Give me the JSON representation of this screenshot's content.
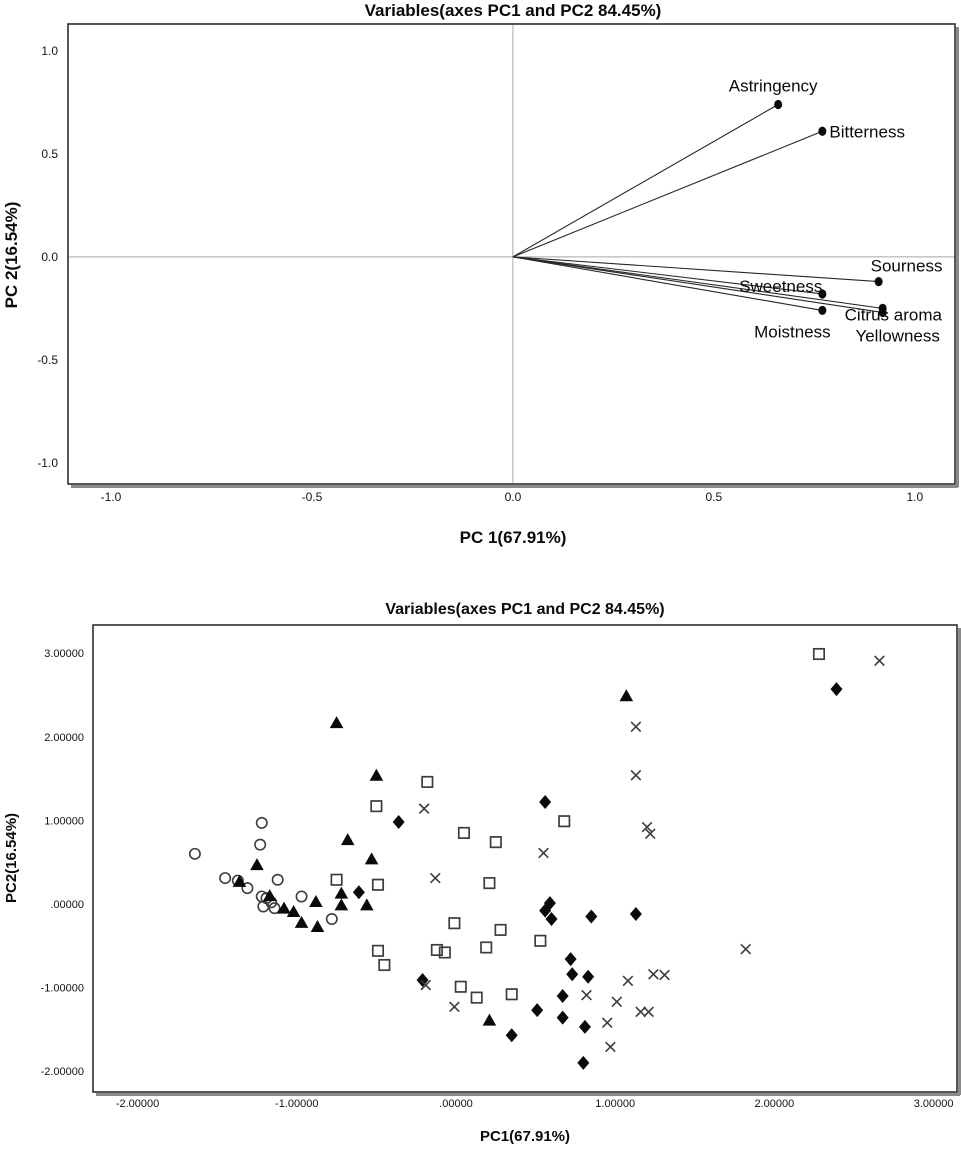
{
  "figure": {
    "background": "#ffffff",
    "frame_color": "#2e2e2e",
    "shadow_color": "#8a8a8a",
    "crosshair_color": "#a8a8a8",
    "marker_color": "#0a0a0a",
    "open_marker_stroke": "#3d3d3d"
  },
  "chart_data": [
    {
      "id": "loadings",
      "type": "scatter",
      "title": "Variables(axes PC1 and PC2 84.45%)",
      "xlabel": "PC 1(67.91%)",
      "ylabel": "PC 2(16.54%)",
      "xlim": [
        -1.107,
        1.1
      ],
      "ylim": [
        -1.103,
        1.131
      ],
      "xticks": [
        -1.0,
        -0.5,
        0.0,
        0.5,
        1.0
      ],
      "xtick_labels": [
        "-1.0",
        "-0.5",
        "0.0",
        "0.5",
        "1.0"
      ],
      "yticks": [
        1.0,
        0.5,
        0.0,
        -0.5,
        -1.0
      ],
      "ytick_labels": [
        "1.0",
        "0.5",
        "0.0",
        "-0.5",
        "-1.0"
      ],
      "grid": false,
      "crosshair": true,
      "legend": "none",
      "vectors": [
        {
          "label": "Astringency",
          "x": 0.66,
          "y": 0.74,
          "anchor": "middle",
          "dx": -5,
          "dy": -13
        },
        {
          "label": "Bitterness",
          "x": 0.77,
          "y": 0.61,
          "anchor": "start",
          "dx": 7,
          "dy": 6
        },
        {
          "label": "Sourness",
          "x": 0.91,
          "y": -0.12,
          "anchor": "start",
          "dx": -8,
          "dy": -10
        },
        {
          "label": "Sweetness",
          "x": 0.77,
          "y": -0.18,
          "anchor": "end",
          "dx": 0,
          "dy": -2
        },
        {
          "label": "Citrus aroma",
          "x": 0.92,
          "y": -0.25,
          "anchor": "start",
          "dx": -38,
          "dy": 12
        },
        {
          "label": "Moistness",
          "x": 0.77,
          "y": -0.26,
          "anchor": "middle",
          "dx": -30,
          "dy": 27
        },
        {
          "label": "Yellowness",
          "x": 0.92,
          "y": -0.27,
          "anchor": "middle",
          "dx": 15,
          "dy": 29
        }
      ]
    },
    {
      "id": "scores",
      "type": "scatter",
      "title": "Variables(axes PC1 and PC2 84.45%)",
      "xlabel": "PC1(67.91%)",
      "ylabel": "PC2(16.54%)",
      "xlim": [
        -2.28,
        3.147
      ],
      "ylim": [
        -2.249,
        3.337
      ],
      "xticks": [
        -2.0,
        -1.0,
        0.0,
        1.0,
        2.0,
        3.0
      ],
      "xtick_labels": [
        "-2.00000",
        "-1.00000",
        ".00000",
        "1.00000",
        "2.00000",
        "3.00000"
      ],
      "yticks": [
        3.0,
        2.0,
        1.0,
        0.0,
        -1.0,
        -2.0
      ],
      "ytick_labels": [
        "3.00000",
        "2.00000",
        "1.00000",
        ".00000",
        "-1.00000",
        "-2.00000"
      ],
      "grid": false,
      "crosshair": false,
      "legend": "none",
      "series": [
        {
          "name": "group-open-circle",
          "marker": "circle",
          "points": [
            [
              -1.64,
              0.6
            ],
            [
              -1.45,
              0.31
            ],
            [
              -1.37,
              0.28
            ],
            [
              -1.31,
              0.19
            ],
            [
              -1.22,
              0.97
            ],
            [
              -1.23,
              0.71
            ],
            [
              -1.12,
              0.29
            ],
            [
              -1.22,
              0.09
            ],
            [
              -1.19,
              0.07
            ],
            [
              -1.21,
              -0.03
            ],
            [
              -1.16,
              0.02
            ],
            [
              -1.14,
              -0.05
            ],
            [
              -0.97,
              0.09
            ],
            [
              -0.78,
              -0.18
            ]
          ]
        },
        {
          "name": "group-filled-triangle",
          "marker": "triangle-filled",
          "points": [
            [
              1.07,
              2.49
            ],
            [
              -0.75,
              2.17
            ],
            [
              -0.5,
              1.54
            ],
            [
              -0.68,
              0.77
            ],
            [
              -0.53,
              0.54
            ],
            [
              -1.25,
              0.47
            ],
            [
              -1.36,
              0.27
            ],
            [
              -1.17,
              0.1
            ],
            [
              -0.72,
              0.13
            ],
            [
              -0.88,
              0.03
            ],
            [
              -1.08,
              -0.05
            ],
            [
              -1.02,
              -0.09
            ],
            [
              -0.72,
              -0.01
            ],
            [
              -0.56,
              -0.01
            ],
            [
              -0.97,
              -0.22
            ],
            [
              -0.87,
              -0.27
            ],
            [
              0.21,
              -1.39
            ]
          ]
        },
        {
          "name": "group-open-square",
          "marker": "square",
          "points": [
            [
              2.28,
              2.99
            ],
            [
              -0.18,
              1.46
            ],
            [
              -0.5,
              1.17
            ],
            [
              0.68,
              0.99
            ],
            [
              0.05,
              0.85
            ],
            [
              0.25,
              0.74
            ],
            [
              -0.75,
              0.29
            ],
            [
              -0.49,
              0.23
            ],
            [
              0.21,
              0.25
            ],
            [
              -0.01,
              -0.23
            ],
            [
              0.28,
              -0.31
            ],
            [
              -0.12,
              -0.55
            ],
            [
              -0.07,
              -0.58
            ],
            [
              0.19,
              -0.52
            ],
            [
              0.53,
              -0.44
            ],
            [
              -0.49,
              -0.56
            ],
            [
              -0.45,
              -0.73
            ],
            [
              0.03,
              -0.99
            ],
            [
              0.13,
              -1.12
            ],
            [
              0.35,
              -1.08
            ]
          ]
        },
        {
          "name": "group-filled-diamond",
          "marker": "diamond-filled",
          "points": [
            [
              2.39,
              2.57
            ],
            [
              0.56,
              1.22
            ],
            [
              -0.36,
              0.98
            ],
            [
              -0.61,
              0.14
            ],
            [
              0.59,
              0.01
            ],
            [
              0.56,
              -0.08
            ],
            [
              0.6,
              -0.18
            ],
            [
              0.85,
              -0.15
            ],
            [
              1.13,
              -0.12
            ],
            [
              0.72,
              -0.66
            ],
            [
              0.73,
              -0.84
            ],
            [
              0.83,
              -0.87
            ],
            [
              -0.21,
              -0.91
            ],
            [
              0.67,
              -1.1
            ],
            [
              0.51,
              -1.27
            ],
            [
              0.67,
              -1.36
            ],
            [
              0.81,
              -1.47
            ],
            [
              0.35,
              -1.57
            ],
            [
              0.8,
              -1.9
            ]
          ]
        },
        {
          "name": "group-x-cross",
          "marker": "x",
          "points": [
            [
              2.66,
              2.91
            ],
            [
              1.13,
              2.12
            ],
            [
              1.13,
              1.54
            ],
            [
              -0.2,
              1.14
            ],
            [
              1.2,
              0.92
            ],
            [
              1.22,
              0.84
            ],
            [
              0.55,
              0.61
            ],
            [
              -0.13,
              0.31
            ],
            [
              1.82,
              -0.54
            ],
            [
              -0.19,
              -0.97
            ],
            [
              -0.01,
              -1.23
            ],
            [
              1.08,
              -0.92
            ],
            [
              1.24,
              -0.84
            ],
            [
              1.31,
              -0.85
            ],
            [
              0.82,
              -1.09
            ],
            [
              1.01,
              -1.17
            ],
            [
              0.95,
              -1.42
            ],
            [
              1.16,
              -1.29
            ],
            [
              1.21,
              -1.29
            ],
            [
              0.97,
              -1.71
            ]
          ]
        }
      ]
    }
  ]
}
